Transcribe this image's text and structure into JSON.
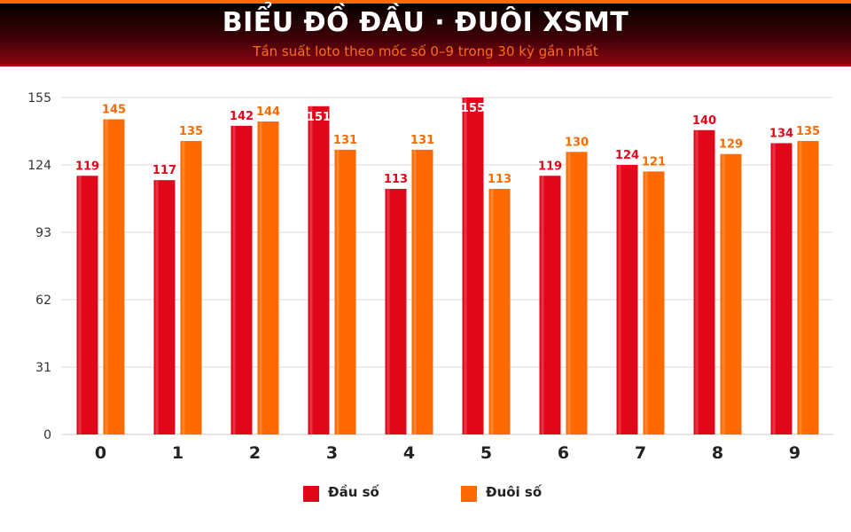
{
  "header": {
    "title": "BIỂU ĐỒ ĐẦU · ĐUÔI XSMT",
    "subtitle": "Tần suất loto theo mốc số 0–9 trong 30 kỳ gần nhất"
  },
  "colors": {
    "dau": "#e2061a",
    "duoi": "#ff6a00",
    "grid": "#dcdcdc",
    "axis_text": "#333333"
  },
  "chart_data": {
    "type": "bar",
    "categories": [
      "0",
      "1",
      "2",
      "3",
      "4",
      "5",
      "6",
      "7",
      "8",
      "9"
    ],
    "series": [
      {
        "name": "Đầu số",
        "values": [
          119,
          117,
          142,
          151,
          113,
          155,
          119,
          124,
          140,
          134
        ]
      },
      {
        "name": "Đuôi số",
        "values": [
          145,
          135,
          144,
          131,
          131,
          113,
          130,
          121,
          129,
          135
        ]
      }
    ],
    "yticks": [
      "0",
      "31",
      "62",
      "93",
      "124",
      "155"
    ],
    "ylim": [
      0,
      155
    ],
    "grid": true,
    "legend": "bottom-center"
  }
}
